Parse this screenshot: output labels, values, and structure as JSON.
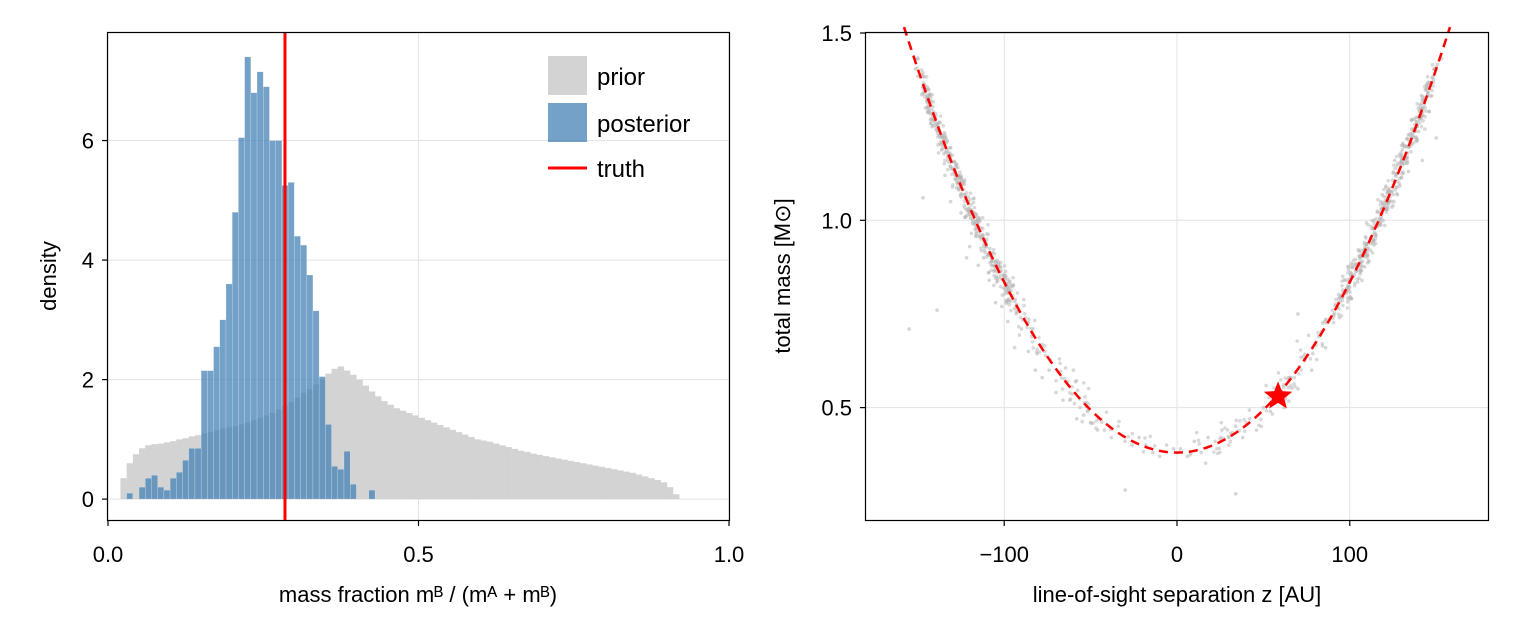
{
  "chart_data": [
    {
      "type": "bar",
      "xlabel": "mass fraction  mᴮ / (mᴬ + mᴮ)",
      "ylabel": "density",
      "xlim": [
        0.0,
        1.0
      ],
      "ylim": [
        -0.35,
        7.8
      ],
      "xticks": [
        0.0,
        0.5,
        1.0
      ],
      "xtick_labels": [
        "0.0",
        "0.5",
        "1.0"
      ],
      "yticks": [
        0,
        2,
        4,
        6
      ],
      "ytick_labels": [
        "0",
        "2",
        "4",
        "6"
      ],
      "grid": true,
      "legend_position": "top-right",
      "legend": [
        "prior",
        "posterior",
        "truth"
      ],
      "colors": {
        "prior": "#d3d3d3",
        "posterior": "#4682b4",
        "truth": "#ff0000"
      },
      "bin_width": 0.01,
      "prior": {
        "name": "prior",
        "bin_starts": [
          0.02,
          0.03,
          0.04,
          0.05,
          0.06,
          0.07,
          0.08,
          0.09,
          0.1,
          0.11,
          0.12,
          0.13,
          0.14,
          0.15,
          0.16,
          0.17,
          0.18,
          0.19,
          0.2,
          0.21,
          0.22,
          0.23,
          0.24,
          0.25,
          0.26,
          0.27,
          0.28,
          0.29,
          0.3,
          0.31,
          0.32,
          0.33,
          0.34,
          0.35,
          0.36,
          0.37,
          0.38,
          0.39,
          0.4,
          0.41,
          0.42,
          0.43,
          0.44,
          0.45,
          0.46,
          0.47,
          0.48,
          0.49,
          0.5,
          0.51,
          0.52,
          0.53,
          0.54,
          0.55,
          0.56,
          0.57,
          0.58,
          0.59,
          0.6,
          0.61,
          0.62,
          0.63,
          0.64,
          0.65,
          0.66,
          0.67,
          0.68,
          0.69,
          0.7,
          0.71,
          0.72,
          0.73,
          0.74,
          0.75,
          0.76,
          0.77,
          0.78,
          0.79,
          0.8,
          0.81,
          0.82,
          0.83,
          0.84,
          0.85,
          0.86,
          0.87,
          0.88,
          0.89,
          0.9,
          0.91
        ],
        "values": [
          0.35,
          0.6,
          0.75,
          0.85,
          0.9,
          0.92,
          0.93,
          0.95,
          0.97,
          1.0,
          1.02,
          1.05,
          1.07,
          1.1,
          1.12,
          1.15,
          1.18,
          1.2,
          1.22,
          1.25,
          1.28,
          1.32,
          1.36,
          1.4,
          1.44,
          1.5,
          1.56,
          1.62,
          1.7,
          1.78,
          1.84,
          1.92,
          2.0,
          2.1,
          2.18,
          2.22,
          2.15,
          2.08,
          2.0,
          1.9,
          1.8,
          1.72,
          1.64,
          1.58,
          1.52,
          1.48,
          1.44,
          1.4,
          1.36,
          1.32,
          1.28,
          1.24,
          1.2,
          1.16,
          1.12,
          1.08,
          1.04,
          1.0,
          0.98,
          0.96,
          0.93,
          0.9,
          0.87,
          0.84,
          0.81,
          0.79,
          0.76,
          0.74,
          0.72,
          0.7,
          0.68,
          0.66,
          0.64,
          0.62,
          0.6,
          0.58,
          0.56,
          0.54,
          0.52,
          0.5,
          0.48,
          0.46,
          0.44,
          0.41,
          0.38,
          0.35,
          0.32,
          0.28,
          0.2,
          0.08
        ]
      },
      "posterior": {
        "name": "posterior",
        "bin_starts": [
          0.03,
          0.04,
          0.05,
          0.06,
          0.07,
          0.08,
          0.09,
          0.1,
          0.11,
          0.12,
          0.13,
          0.14,
          0.15,
          0.16,
          0.17,
          0.18,
          0.19,
          0.2,
          0.21,
          0.22,
          0.23,
          0.24,
          0.25,
          0.26,
          0.27,
          0.28,
          0.29,
          0.3,
          0.31,
          0.32,
          0.33,
          0.34,
          0.35,
          0.36,
          0.37,
          0.38,
          0.39,
          0.4,
          0.41,
          0.42
        ],
        "values": [
          0.1,
          0.0,
          0.2,
          0.35,
          0.4,
          0.2,
          0.15,
          0.35,
          0.45,
          0.65,
          0.85,
          0.85,
          2.15,
          2.15,
          2.55,
          3.0,
          3.6,
          4.8,
          6.05,
          7.4,
          6.8,
          7.15,
          6.9,
          6.0,
          6.0,
          5.25,
          5.3,
          4.4,
          4.25,
          3.75,
          3.15,
          2.05,
          1.25,
          0.55,
          0.5,
          0.8,
          0.25,
          0.0,
          0.0,
          0.15
        ]
      },
      "truth": 0.285
    },
    {
      "type": "scatter",
      "xlabel": "line-of-sight separation z [AU]",
      "ylabel": "total mass [M⊙]",
      "xlim": [
        -180,
        180
      ],
      "ylim": [
        0.2,
        1.5
      ],
      "xticks": [
        -100,
        0,
        100
      ],
      "xtick_labels": [
        "−100",
        "0",
        "100"
      ],
      "yticks": [
        0.5,
        1.0,
        1.5
      ],
      "ytick_labels": [
        "0.5",
        "1.0",
        "1.5"
      ],
      "grid": true,
      "series": [
        {
          "role": "samples",
          "color": "#b4b4b4",
          "points": [
            [
              -155.0,
              0.71
            ],
            [
              -150.0,
              1.43
            ],
            [
              -147.0,
              1.06
            ],
            [
              -141.8,
              1.25
            ],
            [
              -138.9,
              0.76
            ],
            [
              -138.0,
              1.18
            ],
            [
              -136.0,
              1.19
            ],
            [
              -134.3,
              1.12
            ],
            [
              -131.0,
              1.05
            ],
            [
              -128.5,
              1.11
            ],
            [
              -125.0,
              1.02
            ],
            [
              -121.8,
              0.9
            ],
            [
              -120.0,
              0.93
            ],
            [
              -118.3,
              1.0
            ],
            [
              -115.0,
              0.88
            ],
            [
              -112.0,
              0.9
            ],
            [
              -108.7,
              0.84
            ],
            [
              -105.0,
              0.78
            ],
            [
              -101.4,
              0.77
            ],
            [
              -98.0,
              0.73
            ],
            [
              -94.0,
              0.66
            ],
            [
              -90.0,
              0.71
            ],
            [
              -86.0,
              0.65
            ],
            [
              -82.0,
              0.6
            ],
            [
              -78.0,
              0.58
            ],
            [
              -74.0,
              0.6
            ],
            [
              -70.0,
              0.54
            ],
            [
              -66.0,
              0.52
            ],
            [
              -62.0,
              0.52
            ],
            [
              -58.0,
              0.47
            ],
            [
              -54.0,
              0.48
            ],
            [
              -50.0,
              0.46
            ],
            [
              -46.0,
              0.44
            ],
            [
              -42.0,
              0.44
            ],
            [
              -38.0,
              0.42
            ],
            [
              -34.0,
              0.45
            ],
            [
              -30.0,
              0.41
            ],
            [
              -26.0,
              0.4
            ],
            [
              -22.0,
              0.42
            ],
            [
              -18.0,
              0.4
            ],
            [
              -14.0,
              0.38
            ],
            [
              -10.0,
              0.37
            ],
            [
              -6.0,
              0.4
            ],
            [
              -2.0,
              0.39
            ],
            [
              2.0,
              0.39
            ],
            [
              6.0,
              0.37
            ],
            [
              10.0,
              0.41
            ],
            [
              14.0,
              0.38
            ],
            [
              18.0,
              0.42
            ],
            [
              22.0,
              0.41
            ],
            [
              26.0,
              0.44
            ],
            [
              30.0,
              0.4
            ],
            [
              34.0,
              0.45
            ],
            [
              38.0,
              0.42
            ],
            [
              42.0,
              0.47
            ],
            [
              46.0,
              0.44
            ],
            [
              50.0,
              0.5
            ],
            [
              54.0,
              0.49
            ],
            [
              58.0,
              0.54
            ],
            [
              62.0,
              0.5
            ],
            [
              66.0,
              0.58
            ],
            [
              70.0,
              0.55
            ],
            [
              74.0,
              0.63
            ],
            [
              78.0,
              0.6
            ],
            [
              82.0,
              0.69
            ],
            [
              86.0,
              0.66
            ],
            [
              90.0,
              0.76
            ],
            [
              94.0,
              0.74
            ],
            [
              98.0,
              0.81
            ],
            [
              102.0,
              0.85
            ],
            [
              106.0,
              0.92
            ],
            [
              110.0,
              0.9
            ],
            [
              114.0,
              1.0
            ],
            [
              118.0,
              1.05
            ],
            [
              122.0,
              1.08
            ],
            [
              126.0,
              1.16
            ],
            [
              130.0,
              1.2
            ],
            [
              134.0,
              1.13
            ],
            [
              138.0,
              1.22
            ],
            [
              142.0,
              1.16
            ],
            [
              146.0,
              1.29
            ],
            [
              150.0,
              1.22
            ],
            [
              -30.0,
              0.28
            ],
            [
              34.0,
              0.27
            ],
            [
              70.0,
              0.75
            ],
            [
              -60.0,
              0.6
            ]
          ]
        },
        {
          "role": "fit",
          "color": "#ff0000",
          "style": "dashed",
          "coefficients": {
            "a": 0.38,
            "b": 4.55e-05,
            "c": 0.0
          }
        },
        {
          "role": "truth",
          "color": "#ff0000",
          "marker": "star",
          "x": 58.5,
          "y": 0.53
        }
      ]
    }
  ]
}
